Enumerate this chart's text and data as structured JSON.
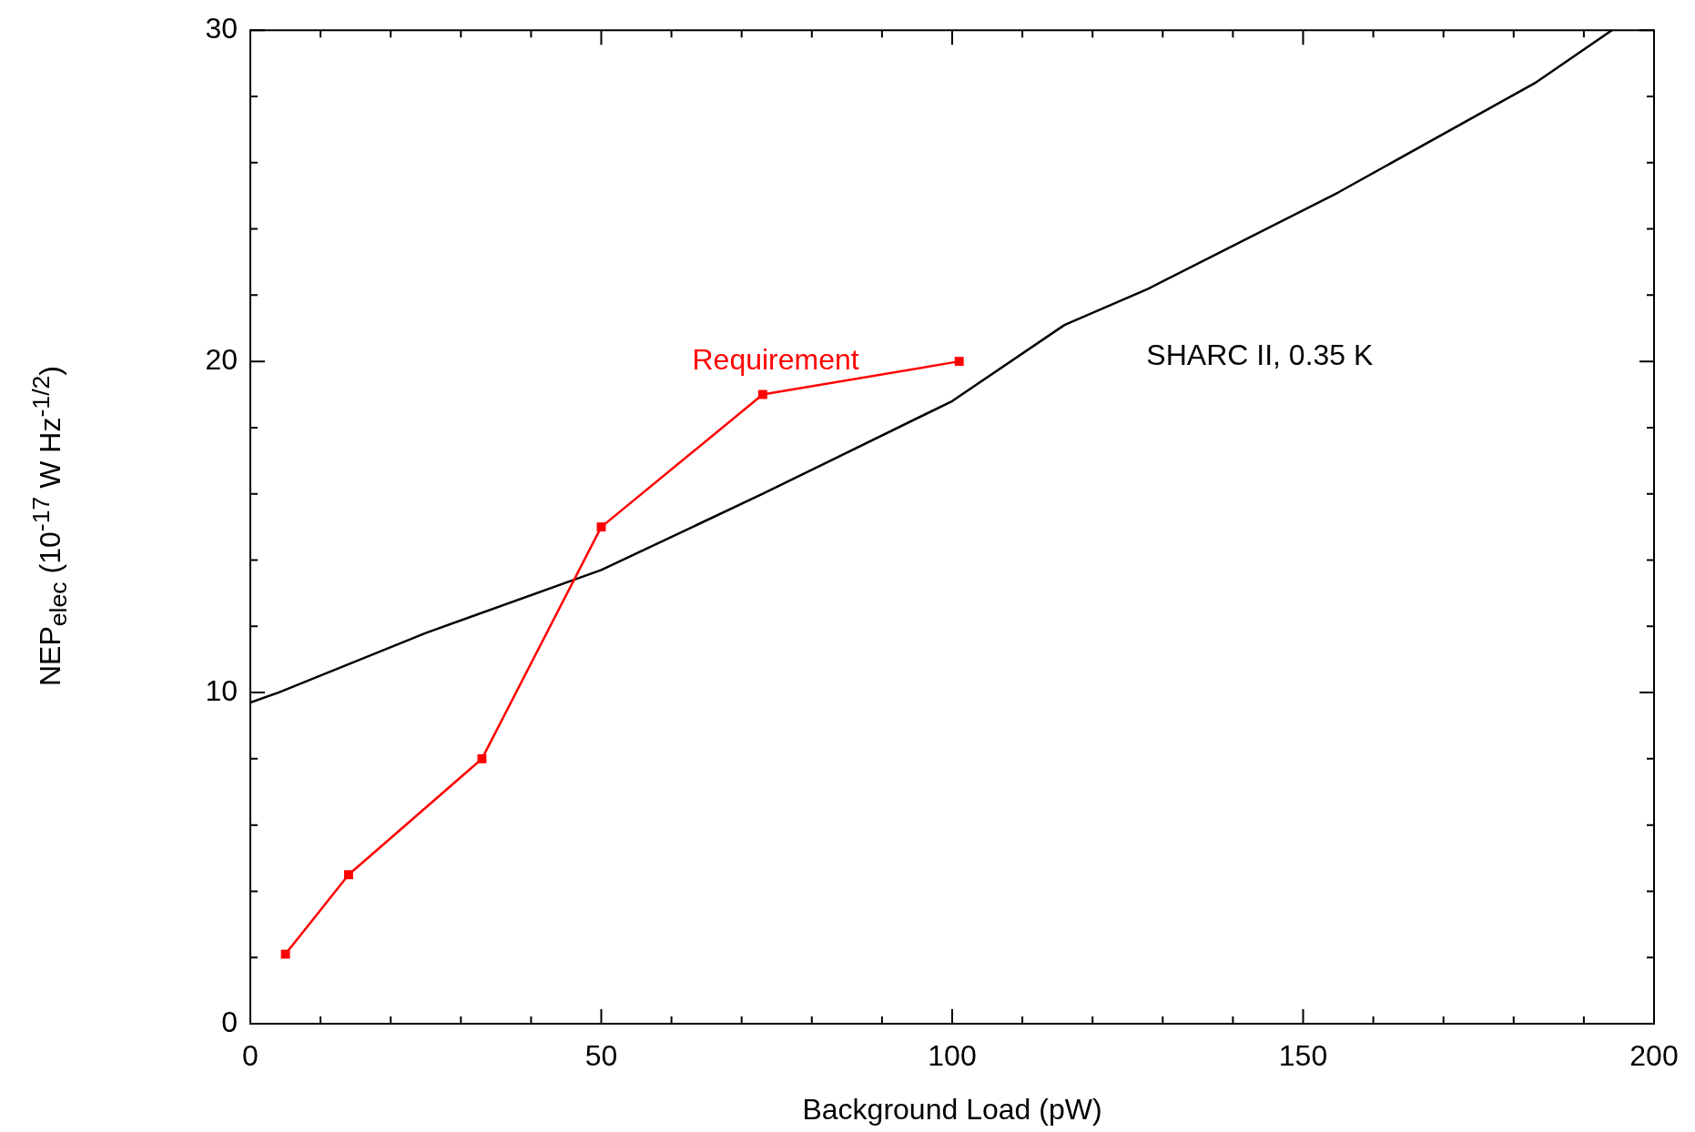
{
  "chart_data": {
    "type": "line",
    "xlabel": "Background Load (pW)",
    "ylabel": "NEP$_{elec}$ (10$^{-17}$ W Hz$^{-1/2}$)",
    "xlim": [
      0,
      200
    ],
    "ylim": [
      0,
      30
    ],
    "xticks": [
      0,
      {
        "value": 10,
        "label": null
      },
      {
        "value": 20,
        "label": null
      },
      {
        "value": 30,
        "label": null
      },
      {
        "value": 40,
        "label": null
      },
      50,
      {
        "value": 60,
        "label": null
      },
      {
        "value": 70,
        "label": null
      },
      {
        "value": 80,
        "label": null
      },
      {
        "value": 90,
        "label": null
      },
      100,
      {
        "value": 110,
        "label": null
      },
      {
        "value": 120,
        "label": null
      },
      {
        "value": 130,
        "label": null
      },
      {
        "value": 140,
        "label": null
      },
      150,
      {
        "value": 160,
        "label": null
      },
      {
        "value": 170,
        "label": null
      },
      {
        "value": 180,
        "label": null
      },
      {
        "value": 190,
        "label": null
      },
      200
    ],
    "yticks": [
      0,
      {
        "value": 2,
        "label": null
      },
      {
        "value": 4,
        "label": null
      },
      {
        "value": 6,
        "label": null
      },
      {
        "value": 8,
        "label": null
      },
      10,
      {
        "value": 12,
        "label": null
      },
      {
        "value": 14,
        "label": null
      },
      {
        "value": 16,
        "label": null
      },
      {
        "value": 18,
        "label": null
      },
      20,
      {
        "value": 22,
        "label": null
      },
      {
        "value": 24,
        "label": null
      },
      {
        "value": 26,
        "label": null
      },
      {
        "value": 28,
        "label": null
      },
      30
    ],
    "grid": false,
    "legend": false,
    "series": [
      {
        "name": "Requirement",
        "color": "#ff0000",
        "marker": "square",
        "x": [
          5,
          14,
          33,
          50,
          73,
          101
        ],
        "values": [
          2.1,
          4.5,
          8,
          15,
          19,
          20
        ]
      },
      {
        "name": "SHARC II, 0.35 K",
        "color": "#000000",
        "marker": "none",
        "x": [
          0,
          4,
          25,
          50,
          73,
          100,
          116,
          128,
          155,
          183,
          194
        ],
        "values": [
          9.7,
          10,
          11.8,
          13.7,
          16,
          18.8,
          21.1,
          22.2,
          25.1,
          28.4,
          30
        ]
      }
    ]
  }
}
